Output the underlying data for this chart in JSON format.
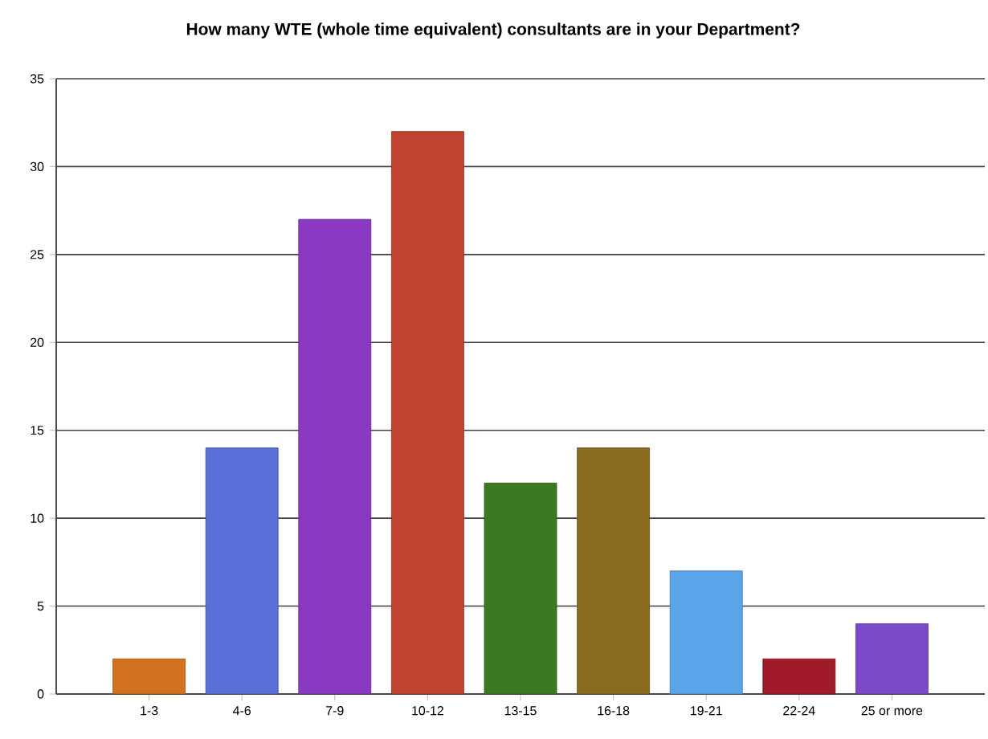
{
  "chart_data": {
    "type": "bar",
    "title": "How many WTE (whole time equivalent) consultants are in your Department?",
    "categories": [
      "1-3",
      "4-6",
      "7-9",
      "10-12",
      "13-15",
      "16-18",
      "19-21",
      "22-24",
      "25 or more"
    ],
    "values": [
      2,
      14,
      27,
      32,
      12,
      14,
      7,
      2,
      4
    ],
    "colors": [
      "#d2711f",
      "#5a6fd8",
      "#8a3ac2",
      "#c2432f",
      "#3c7a22",
      "#8a6a1e",
      "#5aa5ea",
      "#a11a2a",
      "#7a4ac8"
    ],
    "ylim": [
      0,
      35
    ],
    "yticks": [
      0,
      5,
      10,
      15,
      20,
      25,
      30,
      35
    ],
    "grid": "y"
  }
}
